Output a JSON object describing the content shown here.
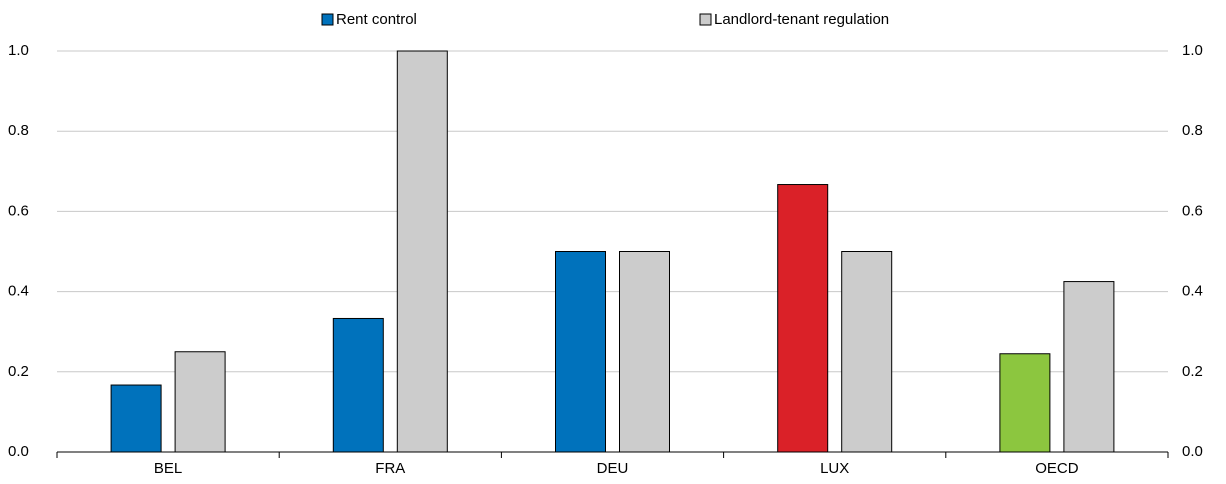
{
  "chart_data": {
    "type": "bar",
    "categories": [
      "BEL",
      "FRA",
      "DEU",
      "LUX",
      "OECD"
    ],
    "series": [
      {
        "name": "Rent control",
        "color": "#0072bc",
        "colors": [
          "#0072bc",
          "#0072bc",
          "#0072bc",
          "#da2128",
          "#8cc63f"
        ],
        "values": [
          0.167,
          0.333,
          0.5,
          0.667,
          0.245
        ]
      },
      {
        "name": "Landlord-tenant regulation",
        "color": "#cccccc",
        "values": [
          0.25,
          1.0,
          0.5,
          0.5,
          0.425
        ]
      }
    ],
    "ylim": [
      0,
      1
    ],
    "yticks": [
      {
        "value": 0,
        "label": "0.0"
      },
      0.2,
      0.4,
      0.6,
      0.8,
      {
        "value": 1,
        "label": "1.0"
      }
    ],
    "y2lim": [
      0,
      1
    ],
    "y2ticks": [
      {
        "value": 0,
        "label": "0.0"
      },
      0.2,
      0.4,
      0.6,
      0.8,
      {
        "value": 1,
        "label": "1.0"
      }
    ],
    "grid": true
  }
}
